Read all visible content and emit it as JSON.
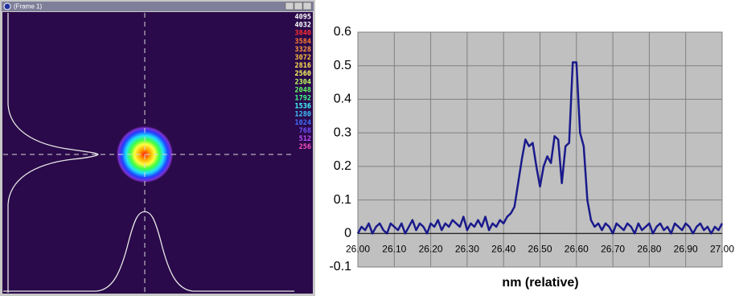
{
  "window": {
    "title": "(Frame 1)",
    "scale": [
      {
        "value": 4095,
        "color": "#ffffff"
      },
      {
        "value": 4032,
        "color": "#ffffff"
      },
      {
        "value": 3840,
        "color": "#ff3030"
      },
      {
        "value": 3584,
        "color": "#ff7a30"
      },
      {
        "value": 3328,
        "color": "#ff9a40"
      },
      {
        "value": 3072,
        "color": "#ffc040"
      },
      {
        "value": 2816,
        "color": "#ffe050"
      },
      {
        "value": 2560,
        "color": "#ffff60"
      },
      {
        "value": 2304,
        "color": "#c0ff60"
      },
      {
        "value": 2048,
        "color": "#60ff60"
      },
      {
        "value": 1792,
        "color": "#40ff90"
      },
      {
        "value": 1536,
        "color": "#40ffff"
      },
      {
        "value": 1280,
        "color": "#40c0ff"
      },
      {
        "value": 1024,
        "color": "#4070ff"
      },
      {
        "value": 768,
        "color": "#7050ff"
      },
      {
        "value": 512,
        "color": "#c050ff"
      },
      {
        "value": 256,
        "color": "#ff50c0"
      }
    ]
  },
  "chart_data": {
    "type": "line",
    "x_label": "nm (relative)",
    "color": "#1a1a8c",
    "grid": true,
    "xlim": [
      26,
      27
    ],
    "ylim": [
      -0.1,
      0.6
    ],
    "xticks": [
      {
        "value": 26,
        "label": "26.00"
      },
      {
        "value": 26.1,
        "label": "26.10"
      },
      {
        "value": 26.2,
        "label": "26.20"
      },
      {
        "value": 26.3,
        "label": "26.30"
      },
      {
        "value": 26.4,
        "label": "26.40"
      },
      {
        "value": 26.5,
        "label": "26.50"
      },
      {
        "value": 26.6,
        "label": "26.60"
      },
      {
        "value": 26.7,
        "label": "26.70"
      },
      {
        "value": 26.8,
        "label": "26.80"
      },
      {
        "value": 26.9,
        "label": "26.90"
      },
      {
        "value": 27,
        "label": "27.00"
      }
    ],
    "yticks": [
      -0.1,
      0,
      0.1,
      0.2,
      0.3,
      0.4,
      0.5,
      0.6
    ],
    "x": [
      26,
      26.01,
      26.02,
      26.03,
      26.04,
      26.05,
      26.06,
      26.07,
      26.08,
      26.09,
      26.1,
      26.11,
      26.12,
      26.13,
      26.14,
      26.15,
      26.16,
      26.17,
      26.18,
      26.19,
      26.2,
      26.21,
      26.22,
      26.23,
      26.24,
      26.25,
      26.26,
      26.27,
      26.28,
      26.29,
      26.3,
      26.31,
      26.32,
      26.33,
      26.34,
      26.35,
      26.36,
      26.37,
      26.38,
      26.39,
      26.4,
      26.41,
      26.42,
      26.43,
      26.44,
      26.45,
      26.46,
      26.47,
      26.48,
      26.49,
      26.5,
      26.51,
      26.52,
      26.53,
      26.54,
      26.55,
      26.56,
      26.57,
      26.58,
      26.59,
      26.6,
      26.61,
      26.62,
      26.63,
      26.64,
      26.65,
      26.66,
      26.67,
      26.68,
      26.69,
      26.7,
      26.71,
      26.72,
      26.73,
      26.74,
      26.75,
      26.76,
      26.77,
      26.78,
      26.79,
      26.8,
      26.81,
      26.82,
      26.83,
      26.84,
      26.85,
      26.86,
      26.87,
      26.88,
      26.89,
      26.9,
      26.91,
      26.92,
      26.93,
      26.94,
      26.95,
      26.96,
      26.97,
      26.98,
      26.99,
      27
    ],
    "values": [
      0,
      0.02,
      0.01,
      0.03,
      0,
      0.02,
      0.03,
      0.01,
      0,
      0.03,
      0.02,
      0.01,
      0.03,
      0,
      0.02,
      0.04,
      0.01,
      0.03,
      0.02,
      0,
      0.03,
      0.02,
      0.04,
      0.01,
      0.03,
      0.02,
      0.04,
      0.03,
      0.02,
      0.05,
      0.01,
      0.03,
      0.02,
      0.04,
      0.02,
      0.05,
      0.01,
      0.03,
      0.02,
      0.04,
      0.03,
      0.05,
      0.06,
      0.08,
      0.15,
      0.22,
      0.28,
      0.26,
      0.27,
      0.2,
      0.14,
      0.2,
      0.23,
      0.21,
      0.29,
      0.28,
      0.15,
      0.26,
      0.27,
      0.51,
      0.51,
      0.3,
      0.26,
      0.1,
      0.04,
      0.02,
      0.03,
      0.01,
      0.03,
      0.02,
      0,
      0.03,
      0.02,
      0.01,
      0.03,
      0.02,
      0,
      0.03,
      0.01,
      0.02,
      0.03,
      0,
      0.02,
      0.03,
      0.01,
      0.02,
      0,
      0.03,
      0.02,
      0.01,
      0.03,
      0.02,
      0,
      0.02,
      0.03,
      0.01,
      0.02,
      0,
      0.02,
      0.01,
      0.03
    ]
  }
}
